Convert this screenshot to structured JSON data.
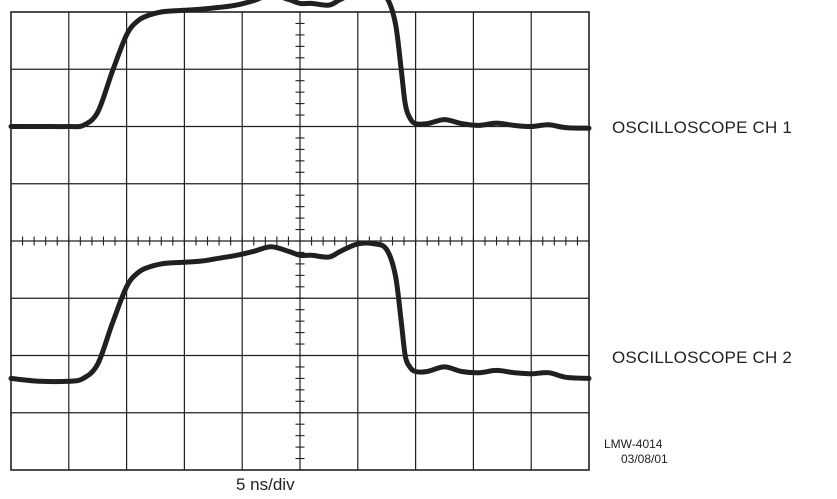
{
  "chart_data": {
    "type": "line",
    "grid": true,
    "x_divisions": 10,
    "y_divisions": 8,
    "minor_ticks_per_division": 5,
    "xlabel": "5 ns/div",
    "ylabel": "",
    "x_unit": "div",
    "y_unit": "div",
    "xlim": [
      0,
      10
    ],
    "ylim": [
      0,
      8
    ],
    "line_color": "#231f20",
    "grid_color": "#231f20",
    "series": [
      {
        "name": "OSCILLOSCOPE CH 1",
        "x": [
          0.0,
          0.5,
          1.0,
          1.25,
          1.5,
          1.75,
          2.0,
          2.2,
          2.4,
          2.6,
          2.8,
          3.0,
          3.3,
          3.6,
          3.9,
          4.2,
          4.5,
          4.8,
          5.0,
          5.2,
          5.5,
          5.7,
          6.0,
          6.3,
          6.5,
          6.65,
          6.75,
          6.82,
          6.9,
          7.0,
          7.2,
          7.5,
          7.8,
          8.1,
          8.4,
          8.7,
          9.0,
          9.3,
          9.6,
          10.0
        ],
        "y": [
          6.0,
          6.0,
          6.0,
          6.02,
          6.25,
          6.95,
          7.6,
          7.85,
          7.95,
          8.0,
          8.02,
          8.03,
          8.05,
          8.08,
          8.12,
          8.2,
          8.3,
          8.22,
          8.15,
          8.15,
          8.12,
          8.22,
          8.35,
          8.35,
          8.25,
          7.8,
          7.0,
          6.4,
          6.15,
          6.05,
          6.05,
          6.12,
          6.05,
          6.02,
          6.06,
          6.02,
          6.0,
          6.03,
          5.98,
          5.97
        ]
      },
      {
        "name": "OSCILLOSCOPE CH 2",
        "x": [
          0.0,
          0.5,
          1.0,
          1.25,
          1.5,
          1.75,
          2.0,
          2.2,
          2.4,
          2.6,
          2.8,
          3.0,
          3.3,
          3.6,
          3.9,
          4.2,
          4.5,
          4.8,
          5.0,
          5.2,
          5.5,
          5.7,
          6.0,
          6.3,
          6.5,
          6.65,
          6.75,
          6.82,
          6.9,
          7.0,
          7.2,
          7.5,
          7.8,
          8.1,
          8.4,
          8.7,
          9.0,
          9.3,
          9.6,
          10.0
        ],
        "y": [
          1.6,
          1.55,
          1.55,
          1.6,
          1.85,
          2.55,
          3.2,
          3.45,
          3.55,
          3.6,
          3.62,
          3.63,
          3.65,
          3.7,
          3.75,
          3.82,
          3.9,
          3.82,
          3.75,
          3.75,
          3.72,
          3.82,
          3.95,
          3.95,
          3.85,
          3.4,
          2.6,
          2.0,
          1.8,
          1.72,
          1.72,
          1.8,
          1.72,
          1.7,
          1.74,
          1.7,
          1.68,
          1.7,
          1.62,
          1.6
        ]
      }
    ]
  },
  "labels": {
    "ch1": "OSCILLOSCOPE CH 1",
    "ch2": "OSCILLOSCOPE CH 2",
    "xlabel": "5 ns/div",
    "code_id": "LMW-4014",
    "code_date": "03/08/01"
  }
}
